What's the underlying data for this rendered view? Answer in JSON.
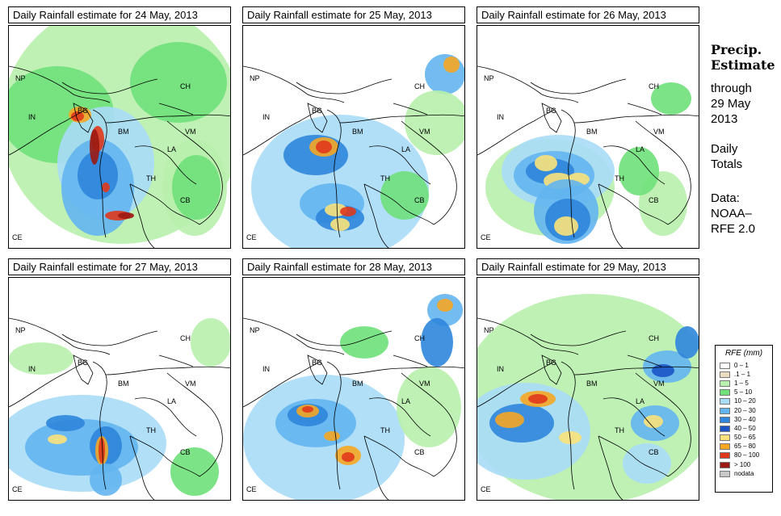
{
  "panels": [
    {
      "title": "Daily Rainfall estimate for  24 May, 2013"
    },
    {
      "title": "Daily Rainfall estimate for  25 May, 2013"
    },
    {
      "title": "Daily Rainfall estimate for  26 May, 2013"
    },
    {
      "title": "Daily Rainfall estimate for  27 May, 2013"
    },
    {
      "title": "Daily Rainfall estimate for  28 May, 2013"
    },
    {
      "title": "Daily Rainfall estimate for  29 May, 2013"
    }
  ],
  "region_labels": {
    "np": "NP",
    "ch": "CH",
    "in": "IN",
    "bg": "BG",
    "bm": "BM",
    "vm": "VM",
    "la": "LA",
    "th": "TH",
    "cb": "CB",
    "ce": "CE"
  },
  "sidebar": {
    "title_line1": "Precip.",
    "title_line2": "Estimate",
    "through": "through",
    "date_line1": "29 May",
    "date_line2": "2013",
    "daily1": "Daily",
    "daily2": "Totals",
    "data1": "Data:",
    "data2": "NOAA–",
    "data3": "RFE 2.0"
  },
  "legend": {
    "title": "RFE (mm)",
    "items": [
      {
        "label": "0 – 1",
        "color": "#ffffff"
      },
      {
        "label": ".1 – 1",
        "color": "#e9dcc0"
      },
      {
        "label": "1 – 5",
        "color": "#b8f0ad"
      },
      {
        "label": "5 – 10",
        "color": "#6fe07a"
      },
      {
        "label": "10 – 20",
        "color": "#a8dcf7"
      },
      {
        "label": "20 – 30",
        "color": "#63b5ef"
      },
      {
        "label": "30 – 40",
        "color": "#2f86dc"
      },
      {
        "label": "40 – 50",
        "color": "#1c55c6"
      },
      {
        "label": "50 – 65",
        "color": "#fbe27a"
      },
      {
        "label": "65 – 80",
        "color": "#f5a623"
      },
      {
        "label": "80 – 100",
        "color": "#e0381c"
      },
      {
        "label": "> 100",
        "color": "#9b1a12"
      },
      {
        "label": "nodata",
        "color": "#c8c8c8"
      }
    ]
  }
}
